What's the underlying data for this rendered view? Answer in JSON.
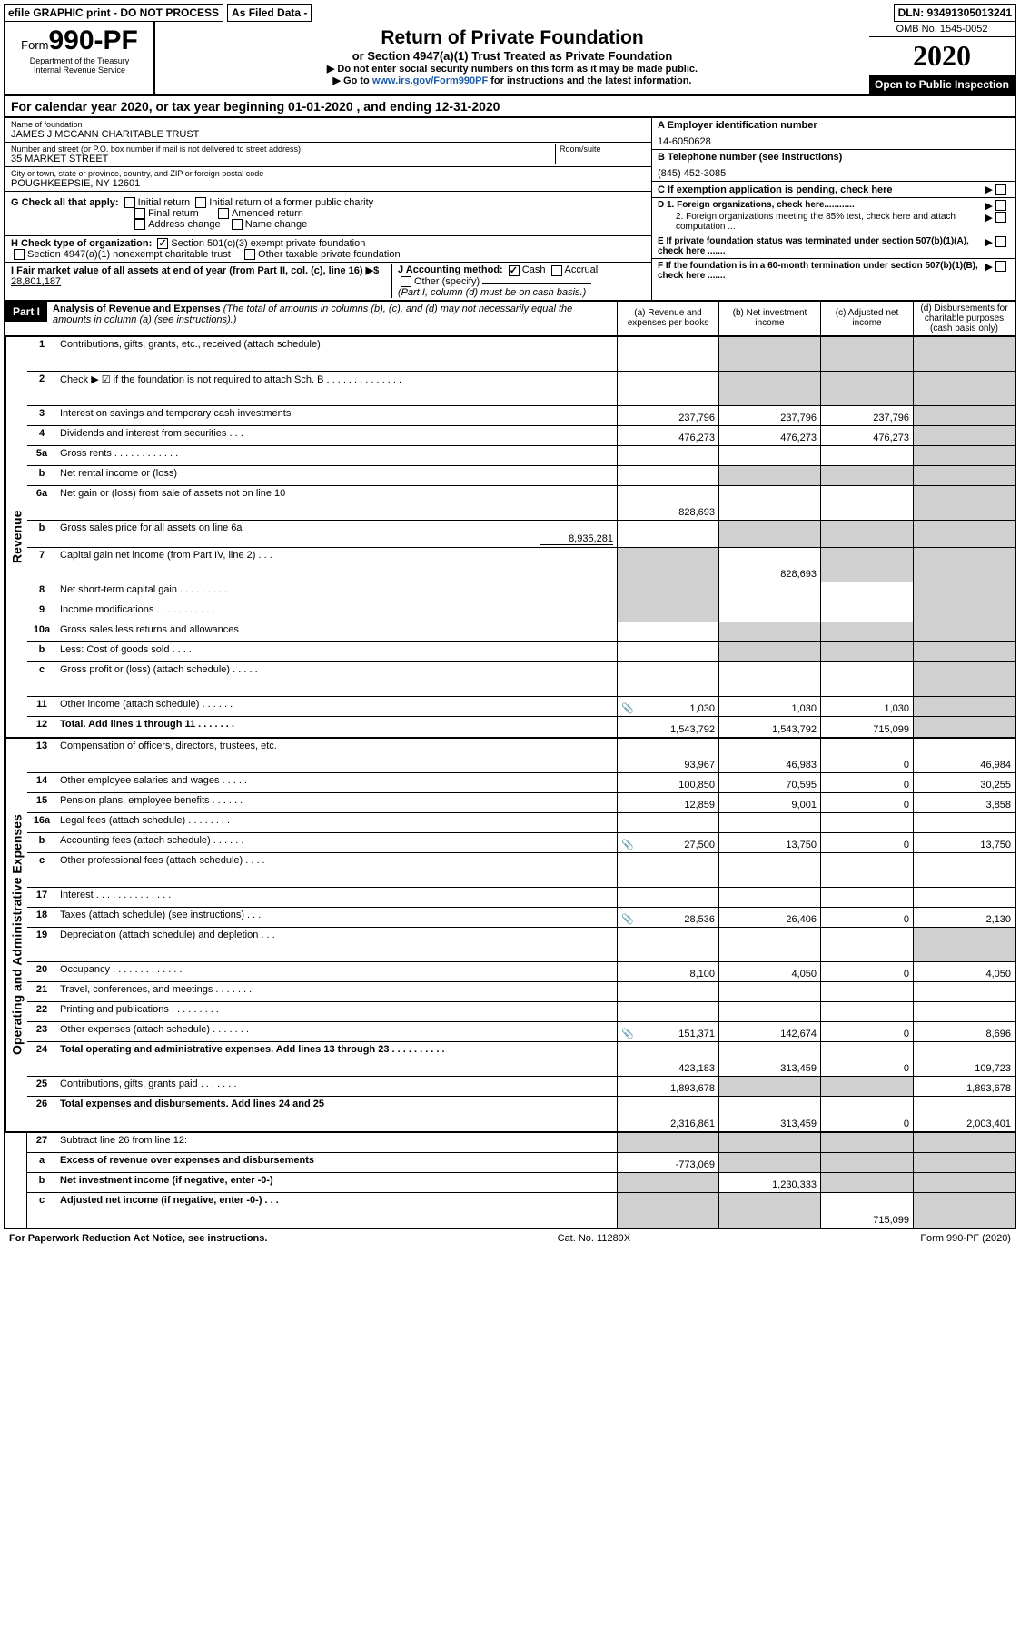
{
  "top": {
    "efile": "efile GRAPHIC print - DO NOT PROCESS",
    "asfiled": "As Filed Data -",
    "dln": "DLN: 93491305013241"
  },
  "header": {
    "form_prefix": "Form",
    "form_number": "990-PF",
    "dept1": "Department of the Treasury",
    "dept2": "Internal Revenue Service",
    "title": "Return of Private Foundation",
    "subtitle": "or Section 4947(a)(1) Trust Treated as Private Foundation",
    "warn1": "▶ Do not enter social security numbers on this form as it may be made public.",
    "warn2_pre": "▶ Go to ",
    "warn2_link": "www.irs.gov/Form990PF",
    "warn2_post": " for instructions and the latest information.",
    "omb": "OMB No. 1545-0052",
    "year": "2020",
    "open": "Open to Public Inspection"
  },
  "cal": "For calendar year 2020, or tax year beginning 01-01-2020               , and ending 12-31-2020",
  "info": {
    "name_label": "Name of foundation",
    "name": "JAMES J MCCANN CHARITABLE TRUST",
    "addr_label": "Number and street (or P.O. box number if mail is not delivered to street address)",
    "addr": "35 MARKET STREET",
    "room_label": "Room/suite",
    "city_label": "City or town, state or province, country, and ZIP or foreign postal code",
    "city": "POUGHKEEPSIE, NY 12601",
    "a_label": "A Employer identification number",
    "a": "14-6050628",
    "b_label": "B Telephone number (see instructions)",
    "b": "(845) 452-3085",
    "c": "C If exemption application is pending, check here",
    "g": "G Check all that apply:",
    "g1": "Initial return",
    "g2": "Initial return of a former public charity",
    "g3": "Final return",
    "g4": "Amended return",
    "g5": "Address change",
    "g6": "Name change",
    "h": "H Check type of organization:",
    "h1": "Section 501(c)(3) exempt private foundation",
    "h2": "Section 4947(a)(1) nonexempt charitable trust",
    "h3": "Other taxable private foundation",
    "i": "I Fair market value of all assets at end of year (from Part II, col. (c), line 16) ▶$ ",
    "i_val": "28,801,187",
    "j": "J Accounting method:",
    "j1": "Cash",
    "j2": "Accrual",
    "j3": "Other (specify)",
    "j_note": "(Part I, column (d) must be on cash basis.)",
    "d1": "D 1. Foreign organizations, check here............",
    "d2": "2. Foreign organizations meeting the 85% test, check here and attach computation ...",
    "e": "E If private foundation status was terminated under section 507(b)(1)(A), check here .......",
    "f": "F If the foundation is in a 60-month termination under section 507(b)(1)(B), check here ......."
  },
  "part1": {
    "label": "Part I",
    "title": "Analysis of Revenue and Expenses",
    "note": " (The total of amounts in columns (b), (c), and (d) may not necessarily equal the amounts in column (a) (see instructions).)",
    "col_a": "(a) Revenue and expenses per books",
    "col_b": "(b) Net investment income",
    "col_c": "(c) Adjusted net income",
    "col_d": "(d) Disbursements for charitable purposes (cash basis only)"
  },
  "sections": {
    "revenue": "Revenue",
    "opex": "Operating and Administrative Expenses"
  },
  "rows": {
    "r1": {
      "n": "1",
      "t": "Contributions, gifts, grants, etc., received (attach schedule)"
    },
    "r2": {
      "n": "2",
      "t": "Check ▶ ☑ if the foundation is not required to attach Sch. B   . . . . . . . . . . . . . ."
    },
    "r3": {
      "n": "3",
      "t": "Interest on savings and temporary cash investments",
      "a": "237,796",
      "b": "237,796",
      "c": "237,796"
    },
    "r4": {
      "n": "4",
      "t": "Dividends and interest from securities   . . .",
      "a": "476,273",
      "b": "476,273",
      "c": "476,273"
    },
    "r5a": {
      "n": "5a",
      "t": "Gross rents   . . . . . . . . . . . ."
    },
    "r5b": {
      "n": "b",
      "t": "Net rental income or (loss)"
    },
    "r6a": {
      "n": "6a",
      "t": "Net gain or (loss) from sale of assets not on line 10",
      "a": "828,693"
    },
    "r6b": {
      "n": "b",
      "t": "Gross sales price for all assets on line 6a",
      "inline": "8,935,281"
    },
    "r7": {
      "n": "7",
      "t": "Capital gain net income (from Part IV, line 2)   . . .",
      "b": "828,693"
    },
    "r8": {
      "n": "8",
      "t": "Net short-term capital gain  . . . . . . . . ."
    },
    "r9": {
      "n": "9",
      "t": "Income modifications . . . . . . . . . . ."
    },
    "r10a": {
      "n": "10a",
      "t": "Gross sales less returns and allowances"
    },
    "r10b": {
      "n": "b",
      "t": "Less: Cost of goods sold   . . . ."
    },
    "r10c": {
      "n": "c",
      "t": "Gross profit or (loss) (attach schedule)   . . . . ."
    },
    "r11": {
      "n": "11",
      "t": "Other income (attach schedule)   . . . . . .",
      "icon": true,
      "a": "1,030",
      "b": "1,030",
      "c": "1,030"
    },
    "r12": {
      "n": "12",
      "t": "Total. Add lines 1 through 11   . . . . . . .",
      "bold": true,
      "a": "1,543,792",
      "b": "1,543,792",
      "c": "715,099"
    },
    "r13": {
      "n": "13",
      "t": "Compensation of officers, directors, trustees, etc.",
      "a": "93,967",
      "b": "46,983",
      "c": "0",
      "d": "46,984"
    },
    "r14": {
      "n": "14",
      "t": "Other employee salaries and wages   . . . . .",
      "a": "100,850",
      "b": "70,595",
      "c": "0",
      "d": "30,255"
    },
    "r15": {
      "n": "15",
      "t": "Pension plans, employee benefits   . . . . . .",
      "a": "12,859",
      "b": "9,001",
      "c": "0",
      "d": "3,858"
    },
    "r16a": {
      "n": "16a",
      "t": "Legal fees (attach schedule) . . . . . . . ."
    },
    "r16b": {
      "n": "b",
      "t": "Accounting fees (attach schedule) . . . . . .",
      "icon": true,
      "a": "27,500",
      "b": "13,750",
      "c": "0",
      "d": "13,750"
    },
    "r16c": {
      "n": "c",
      "t": "Other professional fees (attach schedule)   . . . ."
    },
    "r17": {
      "n": "17",
      "t": "Interest  . . . . . . . . . . . . . ."
    },
    "r18": {
      "n": "18",
      "t": "Taxes (attach schedule) (see instructions)   . . .",
      "icon": true,
      "a": "28,536",
      "b": "26,406",
      "c": "0",
      "d": "2,130"
    },
    "r19": {
      "n": "19",
      "t": "Depreciation (attach schedule) and depletion   . . ."
    },
    "r20": {
      "n": "20",
      "t": "Occupancy  . . . . . . . . . . . . .",
      "a": "8,100",
      "b": "4,050",
      "c": "0",
      "d": "4,050"
    },
    "r21": {
      "n": "21",
      "t": "Travel, conferences, and meetings . . . . . . ."
    },
    "r22": {
      "n": "22",
      "t": "Printing and publications . . . . . . . . ."
    },
    "r23": {
      "n": "23",
      "t": "Other expenses (attach schedule) . . . . . . .",
      "icon": true,
      "a": "151,371",
      "b": "142,674",
      "c": "0",
      "d": "8,696"
    },
    "r24": {
      "n": "24",
      "t": "Total operating and administrative expenses. Add lines 13 through 23  . . . . . . . . . .",
      "bold": true,
      "a": "423,183",
      "b": "313,459",
      "c": "0",
      "d": "109,723"
    },
    "r25": {
      "n": "25",
      "t": "Contributions, gifts, grants paid   . . . . . . .",
      "a": "1,893,678",
      "d": "1,893,678"
    },
    "r26": {
      "n": "26",
      "t": "Total expenses and disbursements. Add lines 24 and 25",
      "bold": true,
      "a": "2,316,861",
      "b": "313,459",
      "c": "0",
      "d": "2,003,401"
    },
    "r27": {
      "n": "27",
      "t": "Subtract line 26 from line 12:"
    },
    "r27a": {
      "n": "a",
      "t": "Excess of revenue over expenses and disbursements",
      "bold": true,
      "a": "-773,069"
    },
    "r27b": {
      "n": "b",
      "t": "Net investment income (if negative, enter -0-)",
      "bold": true,
      "b": "1,230,333"
    },
    "r27c": {
      "n": "c",
      "t": "Adjusted net income (if negative, enter -0-)   . . .",
      "bold": true,
      "c": "715,099"
    }
  },
  "footer": {
    "left": "For Paperwork Reduction Act Notice, see instructions.",
    "center": "Cat. No. 11289X",
    "right": "Form 990-PF (2020)"
  }
}
